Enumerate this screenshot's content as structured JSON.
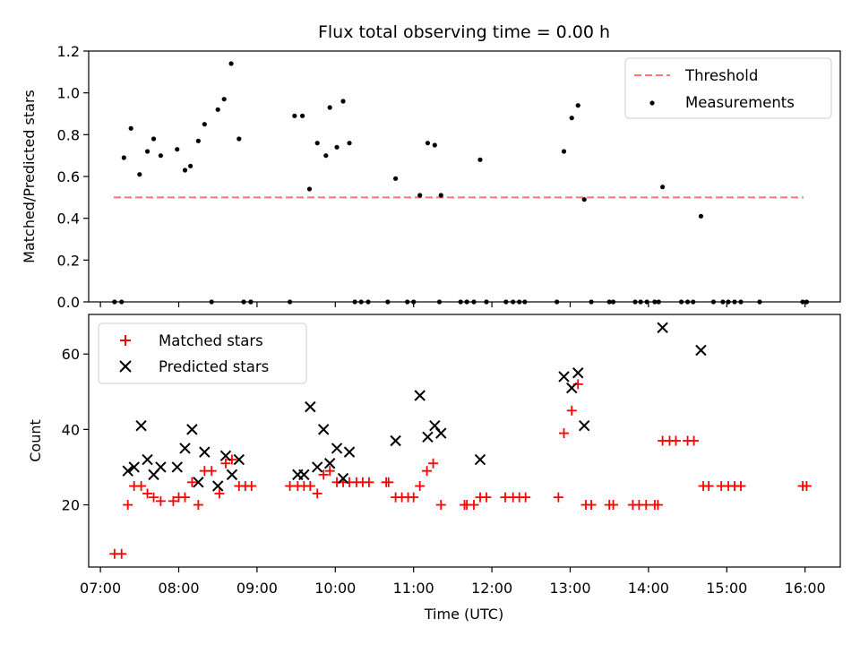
{
  "chart_data": [
    {
      "type": "scatter",
      "title": "Flux total observing time = 0.00 h",
      "xlabel": "",
      "ylabel": "Matched/Predicted stars",
      "ylim": [
        0,
        1.2
      ],
      "yticks": [
        "0.0",
        "0.2",
        "0.4",
        "0.6",
        "0.8",
        "1.0",
        "1.2"
      ],
      "ytick_values": [
        0,
        0.2,
        0.4,
        0.6,
        0.8,
        1.0,
        1.2
      ],
      "xlim_hours": [
        6.85,
        16.45
      ],
      "grid": false,
      "legend_position": "top-right",
      "threshold": {
        "name": "Threshold",
        "value": 0.5,
        "x_range": [
          7.17,
          15.98
        ],
        "color": "#ff7373"
      },
      "series": [
        {
          "name": "Measurements",
          "color": "#000000",
          "points": [
            [
              7.3,
              0.69
            ],
            [
              7.39,
              0.83
            ],
            [
              7.5,
              0.61
            ],
            [
              7.6,
              0.72
            ],
            [
              7.68,
              0.78
            ],
            [
              7.77,
              0.7
            ],
            [
              7.98,
              0.73
            ],
            [
              8.08,
              0.63
            ],
            [
              8.15,
              0.65
            ],
            [
              8.25,
              0.77
            ],
            [
              8.33,
              0.85
            ],
            [
              8.5,
              0.92
            ],
            [
              8.58,
              0.97
            ],
            [
              8.67,
              1.14
            ],
            [
              8.77,
              0.78
            ],
            [
              9.48,
              0.89
            ],
            [
              9.58,
              0.89
            ],
            [
              9.67,
              0.54
            ],
            [
              9.77,
              0.76
            ],
            [
              9.88,
              0.7
            ],
            [
              9.93,
              0.93
            ],
            [
              10.02,
              0.74
            ],
            [
              10.1,
              0.96
            ],
            [
              10.18,
              0.76
            ],
            [
              10.77,
              0.59
            ],
            [
              11.08,
              0.51
            ],
            [
              11.18,
              0.76
            ],
            [
              11.27,
              0.75
            ],
            [
              11.35,
              0.51
            ],
            [
              11.85,
              0.68
            ],
            [
              12.92,
              0.72
            ],
            [
              13.02,
              0.88
            ],
            [
              13.1,
              0.94
            ],
            [
              13.18,
              0.49
            ],
            [
              14.18,
              0.55
            ],
            [
              14.67,
              0.41
            ],
            [
              7.18,
              0
            ],
            [
              7.27,
              0
            ],
            [
              8.92,
              0
            ],
            [
              8.42,
              0
            ],
            [
              8.83,
              0
            ],
            [
              8.92,
              0
            ],
            [
              9.42,
              0
            ],
            [
              10.25,
              0
            ],
            [
              10.33,
              0
            ],
            [
              10.42,
              0
            ],
            [
              10.67,
              0
            ],
            [
              10.92,
              0
            ],
            [
              11.0,
              0
            ],
            [
              11.33,
              0
            ],
            [
              11.6,
              0
            ],
            [
              11.68,
              0
            ],
            [
              11.77,
              0
            ],
            [
              11.93,
              0
            ],
            [
              12.18,
              0
            ],
            [
              12.27,
              0
            ],
            [
              12.35,
              0
            ],
            [
              12.42,
              0
            ],
            [
              12.83,
              0
            ],
            [
              13.27,
              0
            ],
            [
              13.5,
              0
            ],
            [
              13.55,
              0
            ],
            [
              13.83,
              0
            ],
            [
              13.9,
              0
            ],
            [
              13.98,
              0
            ],
            [
              14.08,
              0
            ],
            [
              14.13,
              0
            ],
            [
              14.42,
              0
            ],
            [
              14.5,
              0
            ],
            [
              14.57,
              0
            ],
            [
              14.83,
              0
            ],
            [
              14.95,
              0
            ],
            [
              15.02,
              0
            ],
            [
              15.1,
              0
            ],
            [
              15.18,
              0
            ],
            [
              15.42,
              0
            ],
            [
              15.97,
              0
            ],
            [
              16.02,
              0
            ]
          ]
        }
      ]
    },
    {
      "type": "scatter",
      "title": "",
      "xlabel": "Time (UTC)",
      "ylabel": "Count",
      "ylim": [
        3.5,
        70.5
      ],
      "yticks": [
        "20",
        "40",
        "60"
      ],
      "ytick_values": [
        20,
        40,
        60
      ],
      "xlim_hours": [
        6.85,
        16.45
      ],
      "xticks": [
        "07:00",
        "08:00",
        "09:00",
        "10:00",
        "11:00",
        "12:00",
        "13:00",
        "14:00",
        "15:00",
        "16:00"
      ],
      "xtick_values": [
        7,
        8,
        9,
        10,
        11,
        12,
        13,
        14,
        15,
        16
      ],
      "grid": false,
      "legend_position": "top-left",
      "series": [
        {
          "name": "Matched stars",
          "marker": "plus",
          "color": "#ff0000",
          "points": [
            [
              7.18,
              7
            ],
            [
              7.27,
              7
            ],
            [
              7.35,
              20
            ],
            [
              7.43,
              25
            ],
            [
              7.52,
              25
            ],
            [
              7.6,
              23
            ],
            [
              7.68,
              22
            ],
            [
              7.77,
              21
            ],
            [
              7.93,
              21
            ],
            [
              8.0,
              22
            ],
            [
              8.08,
              22
            ],
            [
              8.17,
              26
            ],
            [
              8.25,
              20
            ],
            [
              8.33,
              29
            ],
            [
              8.42,
              29
            ],
            [
              8.52,
              23
            ],
            [
              8.6,
              31
            ],
            [
              8.68,
              32
            ],
            [
              8.77,
              25
            ],
            [
              8.85,
              25
            ],
            [
              8.93,
              25
            ],
            [
              9.42,
              25
            ],
            [
              9.52,
              25
            ],
            [
              9.6,
              25
            ],
            [
              9.68,
              25
            ],
            [
              9.77,
              23
            ],
            [
              9.85,
              28
            ],
            [
              9.93,
              29
            ],
            [
              10.02,
              26
            ],
            [
              10.1,
              26
            ],
            [
              10.18,
              26
            ],
            [
              10.27,
              26
            ],
            [
              10.35,
              26
            ],
            [
              10.43,
              26
            ],
            [
              10.65,
              26
            ],
            [
              10.68,
              26
            ],
            [
              10.77,
              22
            ],
            [
              10.85,
              22
            ],
            [
              10.93,
              22
            ],
            [
              11.0,
              22
            ],
            [
              11.08,
              25
            ],
            [
              11.17,
              29
            ],
            [
              11.25,
              31
            ],
            [
              11.35,
              20
            ],
            [
              11.65,
              20
            ],
            [
              11.68,
              20
            ],
            [
              11.77,
              20
            ],
            [
              11.85,
              22
            ],
            [
              11.93,
              22
            ],
            [
              12.17,
              22
            ],
            [
              12.27,
              22
            ],
            [
              12.35,
              22
            ],
            [
              12.43,
              22
            ],
            [
              12.85,
              22
            ],
            [
              12.92,
              39
            ],
            [
              13.02,
              45
            ],
            [
              13.1,
              52
            ],
            [
              13.2,
              20
            ],
            [
              13.27,
              20
            ],
            [
              13.5,
              20
            ],
            [
              13.55,
              20
            ],
            [
              13.8,
              20
            ],
            [
              13.88,
              20
            ],
            [
              13.97,
              20
            ],
            [
              14.08,
              20
            ],
            [
              14.12,
              20
            ],
            [
              14.18,
              37
            ],
            [
              14.27,
              37
            ],
            [
              14.35,
              37
            ],
            [
              14.5,
              37
            ],
            [
              14.58,
              37
            ],
            [
              14.7,
              25
            ],
            [
              14.77,
              25
            ],
            [
              14.93,
              25
            ],
            [
              15.02,
              25
            ],
            [
              15.1,
              25
            ],
            [
              15.18,
              25
            ],
            [
              15.97,
              25
            ],
            [
              16.02,
              25
            ]
          ]
        },
        {
          "name": "Predicted stars",
          "marker": "x",
          "color": "#000000",
          "points": [
            [
              7.35,
              29
            ],
            [
              7.43,
              30
            ],
            [
              7.52,
              41
            ],
            [
              7.6,
              32
            ],
            [
              7.68,
              28
            ],
            [
              7.77,
              30
            ],
            [
              7.98,
              30
            ],
            [
              8.08,
              35
            ],
            [
              8.17,
              40
            ],
            [
              8.25,
              26
            ],
            [
              8.33,
              34
            ],
            [
              8.5,
              25
            ],
            [
              8.6,
              33
            ],
            [
              8.68,
              28
            ],
            [
              8.77,
              32
            ],
            [
              9.52,
              28
            ],
            [
              9.6,
              28
            ],
            [
              9.68,
              46
            ],
            [
              9.77,
              30
            ],
            [
              9.85,
              40
            ],
            [
              9.93,
              31
            ],
            [
              10.02,
              35
            ],
            [
              10.1,
              27
            ],
            [
              10.18,
              34
            ],
            [
              10.77,
              37
            ],
            [
              11.08,
              49
            ],
            [
              11.18,
              38
            ],
            [
              11.27,
              41
            ],
            [
              11.35,
              39
            ],
            [
              11.85,
              32
            ],
            [
              12.92,
              54
            ],
            [
              13.02,
              51
            ],
            [
              13.1,
              55
            ],
            [
              13.18,
              41
            ],
            [
              14.18,
              67
            ],
            [
              14.67,
              61
            ]
          ]
        }
      ]
    }
  ]
}
